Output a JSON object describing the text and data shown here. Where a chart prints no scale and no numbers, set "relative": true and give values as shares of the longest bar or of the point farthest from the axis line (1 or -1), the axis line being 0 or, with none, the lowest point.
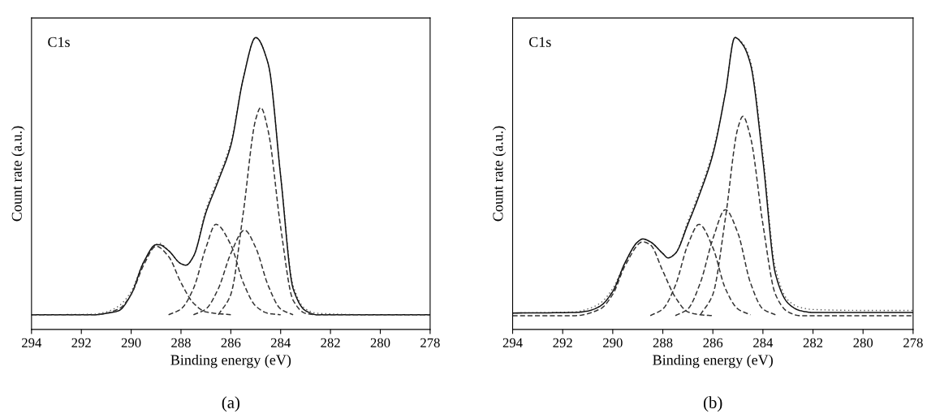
{
  "chart_data": [
    {
      "type": "line",
      "title": "(a)",
      "xlabel": "Binding energy (eV)",
      "ylabel": "Count rate (a.u.)",
      "annotations": [
        "C1s"
      ],
      "relative": true,
      "tick_labels": "x",
      "xlim": [
        294,
        278
      ],
      "xticks": [
        294,
        292,
        290,
        288,
        286,
        284,
        282,
        280,
        278
      ],
      "series": [
        {
          "color": "#555555",
          "line_style": "dotted",
          "x": [
            294,
            291.5,
            291,
            290.5,
            290,
            289.5,
            289,
            288.87,
            288.5,
            288,
            287.8,
            287.5,
            287,
            286.5,
            286,
            285.5,
            285,
            284.5,
            284,
            283.5,
            283,
            282.5,
            280,
            278
          ],
          "values": [
            0.05,
            0.052,
            0.06,
            0.08,
            0.13,
            0.23,
            0.29,
            0.295,
            0.27,
            0.225,
            0.22,
            0.25,
            0.41,
            0.52,
            0.64,
            0.86,
            1.0,
            0.91,
            0.53,
            0.15,
            0.07,
            0.055,
            0.05,
            0.05
          ]
        },
        {
          "color": "#111111",
          "line_style": "solid",
          "x": [
            294,
            291.5,
            291,
            290.5,
            290,
            289.5,
            289,
            288.87,
            288.5,
            288,
            287.8,
            287.5,
            287,
            286.5,
            286,
            285.5,
            285,
            284.5,
            284,
            283.5,
            283,
            282.5,
            280,
            278
          ],
          "values": [
            0.05,
            0.05,
            0.055,
            0.064,
            0.12,
            0.23,
            0.29,
            0.29,
            0.27,
            0.225,
            0.22,
            0.25,
            0.4,
            0.51,
            0.63,
            0.86,
            1.0,
            0.91,
            0.525,
            0.14,
            0.064,
            0.05,
            0.05,
            0.05
          ]
        },
        {
          "color": "#333333",
          "line_style": "dashed",
          "x": [
            294,
            291.5,
            290.5,
            290,
            289.5,
            289,
            288.5,
            288,
            287.5,
            287,
            286
          ],
          "values": [
            0.05,
            0.05,
            0.07,
            0.12,
            0.22,
            0.285,
            0.25,
            0.16,
            0.09,
            0.06,
            0.05
          ]
        },
        {
          "color": "#333333",
          "line_style": "dashed",
          "x": [
            288.5,
            288,
            287.5,
            287,
            286.6,
            286,
            285.5,
            285,
            284.5,
            284
          ],
          "values": [
            0.05,
            0.07,
            0.14,
            0.28,
            0.36,
            0.29,
            0.16,
            0.08,
            0.055,
            0.05
          ]
        },
        {
          "color": "#333333",
          "line_style": "dashed",
          "x": [
            287.5,
            287,
            286.5,
            286,
            285.45,
            285,
            284.5,
            284,
            283.5
          ],
          "values": [
            0.05,
            0.07,
            0.14,
            0.26,
            0.34,
            0.28,
            0.15,
            0.07,
            0.05
          ]
        },
        {
          "color": "#333333",
          "line_style": "dashed",
          "x": [
            286.5,
            286,
            285.5,
            285,
            284.8,
            284.5,
            284,
            283.5,
            283,
            282.5,
            278
          ],
          "values": [
            0.05,
            0.12,
            0.4,
            0.72,
            0.76,
            0.68,
            0.35,
            0.1,
            0.055,
            0.05,
            0.05
          ]
        }
      ]
    },
    {
      "type": "line",
      "title": "(b)",
      "xlabel": "Binding energy (eV)",
      "ylabel": "Count rate (a.u.)",
      "annotations": [
        "C1s"
      ],
      "relative": true,
      "tick_labels": "x",
      "xlim": [
        294,
        278
      ],
      "xticks": [
        294,
        292,
        290,
        288,
        286,
        284,
        282,
        280,
        278
      ],
      "series": [
        {
          "color": "#555555",
          "line_style": "dotted",
          "x": [
            294,
            291.5,
            291,
            290.5,
            290,
            289.5,
            289,
            288.8,
            288.5,
            288,
            287.79,
            287.5,
            287,
            286.5,
            286,
            285.5,
            285.12,
            284.8,
            284.5,
            284,
            283.5,
            283,
            282.5,
            282,
            280,
            278
          ],
          "values": [
            0.056,
            0.06,
            0.07,
            0.09,
            0.14,
            0.23,
            0.3,
            0.31,
            0.3,
            0.26,
            0.245,
            0.26,
            0.37,
            0.48,
            0.61,
            0.81,
            1.0,
            0.98,
            0.92,
            0.6,
            0.21,
            0.1,
            0.075,
            0.068,
            0.065,
            0.065
          ]
        },
        {
          "color": "#111111",
          "line_style": "solid",
          "x": [
            294,
            291.5,
            291,
            290.5,
            290,
            289.5,
            289,
            288.8,
            288.5,
            288,
            287.79,
            287.5,
            287,
            286.5,
            286,
            285.5,
            285.12,
            284.8,
            284.5,
            284,
            283.5,
            283,
            282.5,
            282,
            280,
            278
          ],
          "values": [
            0.056,
            0.058,
            0.063,
            0.08,
            0.13,
            0.23,
            0.3,
            0.31,
            0.3,
            0.26,
            0.245,
            0.26,
            0.36,
            0.47,
            0.6,
            0.81,
            1.0,
            0.975,
            0.91,
            0.58,
            0.19,
            0.09,
            0.064,
            0.058,
            0.058,
            0.058
          ]
        },
        {
          "color": "#333333",
          "line_style": "dashed",
          "x": [
            294,
            291.5,
            290.5,
            290,
            289.5,
            288.8,
            288.5,
            288,
            287.5,
            287,
            286.5,
            286
          ],
          "values": [
            0.047,
            0.047,
            0.07,
            0.12,
            0.22,
            0.3,
            0.29,
            0.2,
            0.11,
            0.06,
            0.05,
            0.047
          ]
        },
        {
          "color": "#333333",
          "line_style": "dashed",
          "x": [
            288.5,
            288,
            287.5,
            287,
            286.55,
            286,
            285.5,
            285,
            284.5
          ],
          "values": [
            0.047,
            0.07,
            0.15,
            0.29,
            0.36,
            0.28,
            0.14,
            0.07,
            0.05
          ]
        },
        {
          "color": "#333333",
          "line_style": "dashed",
          "x": [
            287.5,
            287,
            286.5,
            286,
            285.5,
            285,
            284.5,
            284,
            283.5
          ],
          "values": [
            0.047,
            0.07,
            0.16,
            0.31,
            0.41,
            0.33,
            0.16,
            0.07,
            0.05
          ]
        },
        {
          "color": "#333333",
          "line_style": "dashed",
          "x": [
            286.5,
            286,
            285.5,
            285,
            284.8,
            284.5,
            284,
            283.5,
            283,
            282.5,
            278
          ],
          "values": [
            0.05,
            0.12,
            0.38,
            0.69,
            0.73,
            0.66,
            0.36,
            0.12,
            0.06,
            0.047,
            0.047
          ]
        }
      ]
    }
  ]
}
